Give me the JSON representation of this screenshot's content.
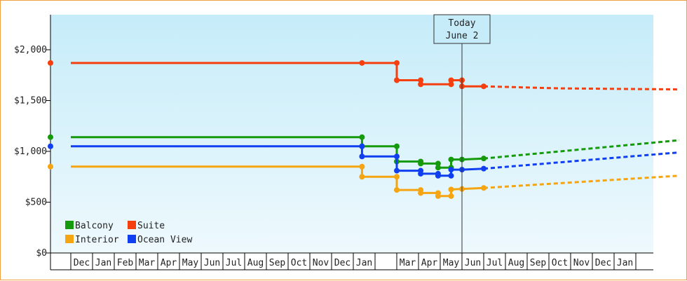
{
  "chart_data": {
    "type": "line",
    "title": "",
    "xlabel": "",
    "ylabel": "",
    "ylim": [
      0,
      2300
    ],
    "yticks": [
      0,
      500,
      1000,
      1500,
      2000
    ],
    "ytick_labels": [
      "$0",
      "$500",
      "$1,000",
      "$1,500",
      "$2,000"
    ],
    "grid": false,
    "legend_position": "bottom-left",
    "month_labels": [
      "",
      "Dec",
      "Jan",
      "Feb",
      "Mar",
      "Apr",
      "May",
      "Jun",
      "Jul",
      "Aug",
      "Sep",
      "Oct",
      "Nov",
      "Dec",
      "Jan",
      "",
      "Mar",
      "Apr",
      "May",
      "Jun",
      "Jul",
      "Aug",
      "Sep",
      "Oct",
      "Nov",
      "Dec",
      "Jan",
      ""
    ],
    "today_marker": {
      "line1": "Today",
      "line2": "June 2",
      "month_index": 19
    },
    "series": [
      {
        "name": "Balcony",
        "color": "#159a0c",
        "points": [
          [
            0,
            1140
          ],
          [
            13.4,
            1140
          ],
          [
            13.4,
            1050
          ],
          [
            15.0,
            1050
          ],
          [
            15.0,
            900
          ],
          [
            16.1,
            900
          ],
          [
            16.1,
            880
          ],
          [
            16.9,
            880
          ],
          [
            16.9,
            840
          ],
          [
            17.5,
            840
          ],
          [
            17.5,
            920
          ],
          [
            18.0,
            920
          ],
          [
            19.0,
            930
          ]
        ],
        "forecast": [
          [
            19.0,
            930
          ],
          [
            28.0,
            1110
          ]
        ]
      },
      {
        "name": "Suite",
        "color": "#f53f0f",
        "points": [
          [
            0,
            1870
          ],
          [
            13.4,
            1870
          ],
          [
            15.0,
            1870
          ],
          [
            15.0,
            1700
          ],
          [
            16.1,
            1700
          ],
          [
            16.1,
            1660
          ],
          [
            17.5,
            1660
          ],
          [
            17.5,
            1700
          ],
          [
            18.0,
            1700
          ],
          [
            18.0,
            1640
          ],
          [
            19.0,
            1640
          ]
        ],
        "forecast": [
          [
            19.0,
            1640
          ],
          [
            22.5,
            1620
          ],
          [
            28.0,
            1610
          ]
        ]
      },
      {
        "name": "Interior",
        "color": "#f5a511",
        "points": [
          [
            0,
            850
          ],
          [
            13.4,
            850
          ],
          [
            13.4,
            750
          ],
          [
            15.0,
            750
          ],
          [
            15.0,
            620
          ],
          [
            16.1,
            620
          ],
          [
            16.1,
            590
          ],
          [
            16.9,
            590
          ],
          [
            16.9,
            560
          ],
          [
            17.5,
            560
          ],
          [
            17.5,
            625
          ],
          [
            18.0,
            630
          ],
          [
            19.0,
            640
          ]
        ],
        "forecast": [
          [
            19.0,
            640
          ],
          [
            28.0,
            760
          ]
        ]
      },
      {
        "name": "Ocean View",
        "color": "#0f3ff0",
        "points": [
          [
            0,
            1050
          ],
          [
            13.4,
            1050
          ],
          [
            13.4,
            950
          ],
          [
            15.0,
            950
          ],
          [
            15.0,
            810
          ],
          [
            16.1,
            810
          ],
          [
            16.1,
            780
          ],
          [
            16.9,
            780
          ],
          [
            16.9,
            760
          ],
          [
            17.5,
            760
          ],
          [
            17.5,
            820
          ],
          [
            18.0,
            820
          ],
          [
            19.0,
            830
          ]
        ],
        "forecast": [
          [
            19.0,
            830
          ],
          [
            28.0,
            990
          ]
        ]
      }
    ]
  }
}
